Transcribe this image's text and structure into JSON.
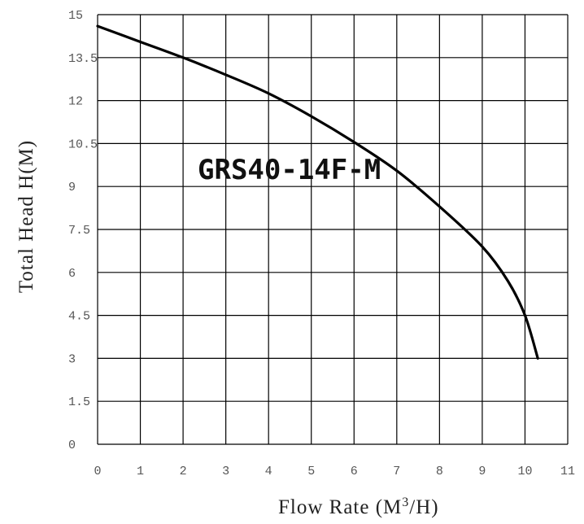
{
  "chart_data": {
    "type": "line",
    "annotation": "GRS40-14F-M",
    "xlabel": "Flow Rate (M³/H)",
    "xlabel_parts": {
      "before": "Flow Rate (M",
      "sup": "3",
      "after": "/H)"
    },
    "ylabel": "Total Head H(M)",
    "xlim": [
      0,
      11
    ],
    "ylim": [
      0,
      15
    ],
    "grid": true,
    "x_ticks": [
      "0",
      "1",
      "2",
      "3",
      "4",
      "5",
      "6",
      "7",
      "8",
      "9",
      "10",
      "11"
    ],
    "y_ticks": [
      "0",
      "1.5",
      "3",
      "4.5",
      "6",
      "7.5",
      "9",
      "10.5",
      "12",
      "13.5",
      "15"
    ],
    "series": [
      {
        "x": [
          0,
          1,
          2,
          3,
          4,
          5,
          6,
          7,
          8,
          9,
          9.6,
          10,
          10.3
        ],
        "y": [
          14.6,
          14.05,
          13.5,
          12.9,
          12.25,
          11.45,
          10.55,
          9.55,
          8.3,
          6.9,
          5.7,
          4.5,
          3.0
        ]
      }
    ]
  }
}
